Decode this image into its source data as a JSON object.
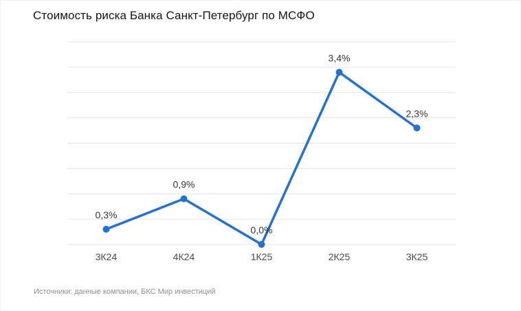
{
  "title": "Стоимость риска Банка Санкт-Петербург по МСФО",
  "source": "Источники: данные компании, БКС Мир инвестиций",
  "colors": {
    "line": "#2271d3",
    "grid": "#e4e4e4",
    "data_label": "#333333",
    "tick_label": "#4a4a4a",
    "title_text": "#141414",
    "source_text": "#8f8f8f",
    "background": "#ffffff"
  },
  "chart_data": {
    "type": "line",
    "title": "Стоимость риска Банка Санкт-Петербург по МСФО",
    "categories": [
      "3К24",
      "4К24",
      "1К25",
      "2К25",
      "3К25"
    ],
    "values": [
      0.3,
      0.9,
      0.0,
      3.4,
      2.3
    ],
    "data_labels": [
      "0,3%",
      "0,9%",
      "0,0%",
      "3,4%",
      "2,3%"
    ],
    "xlabel": "",
    "ylabel": "",
    "ylim": [
      0,
      4
    ],
    "grid_step": 0.5,
    "grid": true,
    "legend": false,
    "y_axis_labels_visible": false,
    "line_color": "#2271d3",
    "marker": "circle",
    "source": "Источники: данные компании, БКС Мир инвестиций"
  }
}
